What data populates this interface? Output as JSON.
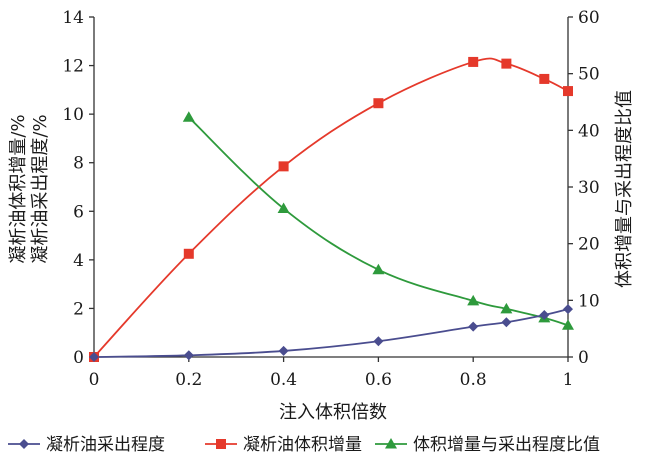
{
  "chart_data": {
    "type": "line",
    "xlabel": "注入体积倍数",
    "ylabel_left": [
      "凝析油体积增量/%",
      "凝析油采出程度/%"
    ],
    "ylabel_right": "体积增量与采出程度比值",
    "x_ticks": [
      "0",
      "0.2",
      "0.4",
      "0.6",
      "0.8",
      "1"
    ],
    "y_left_ticks": [
      "0",
      "2",
      "4",
      "6",
      "8",
      "10",
      "12",
      "14"
    ],
    "y_right_ticks": [
      "0",
      "10",
      "20",
      "30",
      "40",
      "50",
      "60"
    ],
    "xlim": [
      0,
      1
    ],
    "ylim_left": [
      0,
      14
    ],
    "ylim_right": [
      0,
      60
    ],
    "grid": false,
    "legend_position": "bottom",
    "series": [
      {
        "name": "凝析油采出程度",
        "axis": "left",
        "marker": "diamond",
        "color": "#4a4d8f",
        "x": [
          0,
          0.2,
          0.4,
          0.6,
          0.8,
          0.87,
          0.95,
          1.0
        ],
        "y": [
          0,
          0.07,
          0.25,
          0.65,
          1.25,
          1.43,
          1.73,
          1.97
        ]
      },
      {
        "name": "凝析油体积增量",
        "axis": "left",
        "marker": "square",
        "color": "#e5392b",
        "x": [
          0,
          0.2,
          0.4,
          0.6,
          0.8,
          0.87,
          0.95,
          1.0
        ],
        "y": [
          0,
          4.25,
          7.85,
          10.45,
          12.15,
          12.08,
          11.45,
          10.95
        ]
      },
      {
        "name": "体积增量与采出程度比值",
        "axis": "right",
        "marker": "triangle",
        "color": "#2e9a3c",
        "x": [
          0.2,
          0.4,
          0.6,
          0.8,
          0.87,
          0.95,
          1.0
        ],
        "y": [
          42.3,
          26.2,
          15.4,
          9.9,
          8.5,
          6.9,
          5.6
        ]
      }
    ]
  }
}
